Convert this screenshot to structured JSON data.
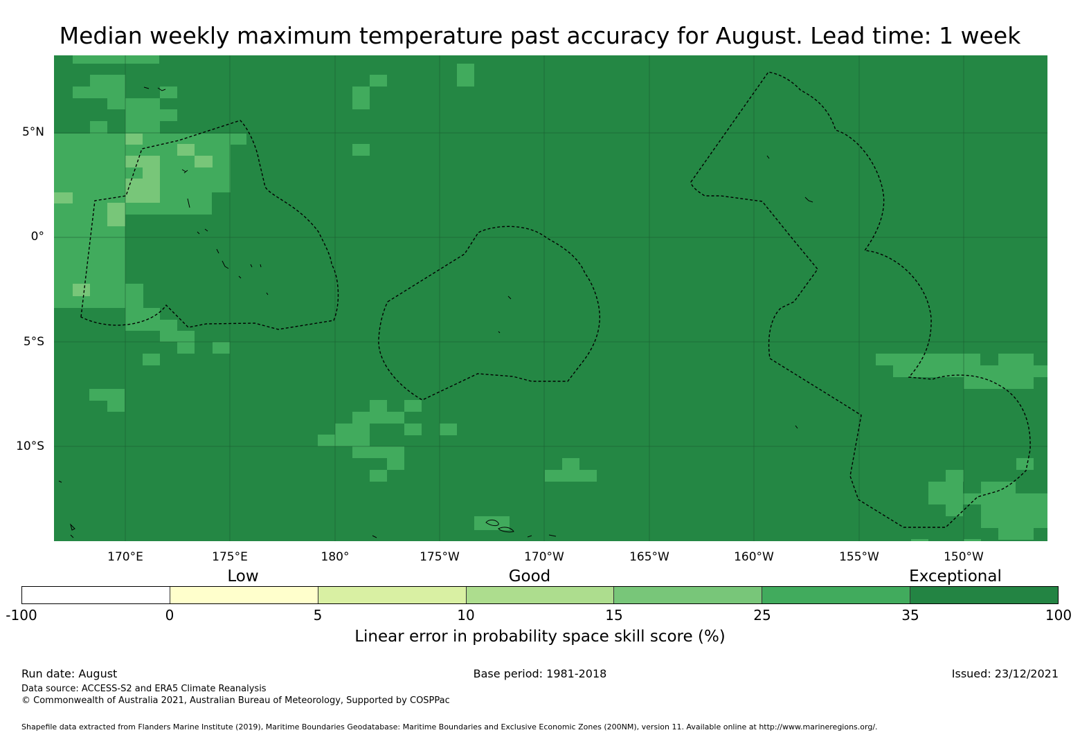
{
  "title": "Median weekly maximum temperature past accuracy for August. Lead time: 1 week",
  "map": {
    "background_color": "#248744",
    "lat_labels": [
      "5°N",
      "0°",
      "5°S",
      "10°S"
    ],
    "lon_labels": [
      "170°E",
      "175°E",
      "180°",
      "175°W",
      "170°W",
      "165°W",
      "160°W",
      "155°W",
      "150°W"
    ],
    "category_labels": [
      "Low",
      "Good",
      "Exceptional"
    ],
    "grid": true,
    "eez_boundaries": "dashed",
    "legend_placement": "bottom"
  },
  "colorbar": {
    "title": "Linear error in probability space skill score (%)",
    "ticks": [
      "-100",
      "0",
      "5",
      "10",
      "15",
      "25",
      "35",
      "100"
    ],
    "colors": [
      "#ffffff",
      "#ffffcc",
      "#d9f0a3",
      "#addd8e",
      "#78c679",
      "#41ab5d",
      "#238443"
    ]
  },
  "footer": {
    "run_date": "Run date: August",
    "base_period": "Base period: 1981-2018",
    "issued": "Issued: 23/12/2021",
    "data_source": "Data source: ACCESS-S2 and ERA5 Climate Reanalysis",
    "copyright": "© Commonwealth of Australia 2021, Australian Bureau of Meteorology, Supported by COSPPac",
    "shapefile": "Shapefile data extracted from Flanders Marine Institute (2019), Maritime Boundaries Geodatabase: Maritime Boundaries and Exclusive Economic Zones (200NM), version 11. Available online at http://www.marineregions.org/."
  }
}
